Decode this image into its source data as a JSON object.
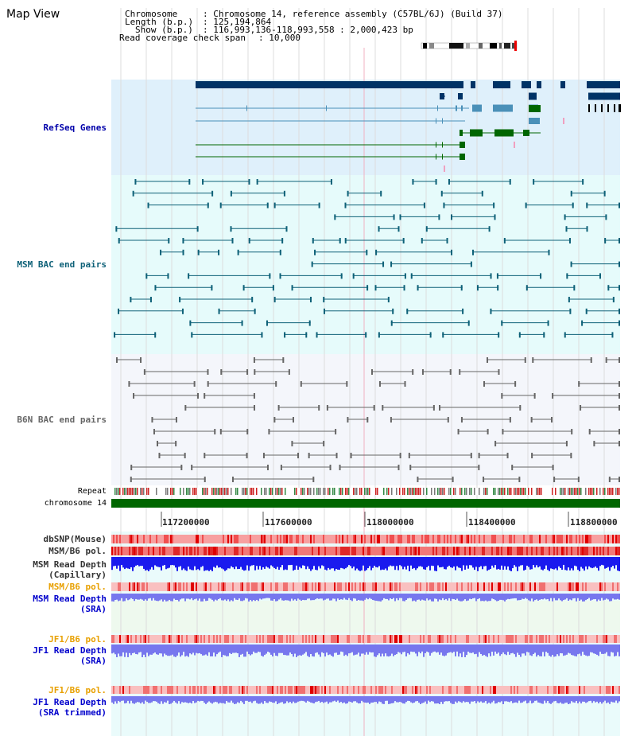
{
  "title": "Map View",
  "header": {
    "chromosome_key": "Chromosome",
    "chromosome_val": ": Chromosome 14, reference assembly (C57BL/6J) (Build 37)",
    "length_key": "Length (b.p.)",
    "length_val": ": 125,194,864",
    "show_key": "Show (b.p.)",
    "show_val": ": 116,993,136-118,993,558 : 2,000,423 bp",
    "coverage_key": "Read coverage check span",
    "coverage_val": ": 10,000"
  },
  "tracks": {
    "refseq": "RefSeq Genes",
    "msm_bac": "MSM BAC end pairs",
    "b6n_bac": "B6N BAC end pairs",
    "repeat": "Repeat",
    "chromosome": "chromosome 14",
    "dbsnp": "dbSNP(Mouse)",
    "msm_b6_pol": "MSM/B6 pol.",
    "msm_depth_cap_1": "MSM Read Depth",
    "msm_depth_cap_2": "(Capillary)",
    "msm_b6_pol_2": "MSM/B6 pol.",
    "msm_depth_sra_1": "MSM Read Depth",
    "msm_depth_sra_2": "(SRA)",
    "jf1_pol": "JF1/B6 pol.",
    "jf1_depth_sra_1": "JF1 Read Depth",
    "jf1_depth_sra_2": "(SRA)",
    "jf1_pol_2": "JF1/B6 pol.",
    "jf1_depth_trim_1": "JF1 Read Depth",
    "jf1_depth_trim_2": "(SRA trimmed)"
  },
  "axis_ticks": [
    "117200000",
    "117600000",
    "118000000",
    "118400000",
    "118800000"
  ],
  "colors": {
    "refseq_bg": "#dff0fb",
    "msm_bg": "#e6fbfb",
    "b6n_bg": "#f4f6fb",
    "chromosome_bar": "#006600",
    "gene_dark": "#003366",
    "gene_blue": "#4a90b8",
    "gene_green": "#006600",
    "msm_pair": "#0e6178",
    "b6n_pair": "#666666",
    "depth_blue": "#1a1aee",
    "depth_light": "#7777ee",
    "pol_red": "#e83a3a"
  }
}
